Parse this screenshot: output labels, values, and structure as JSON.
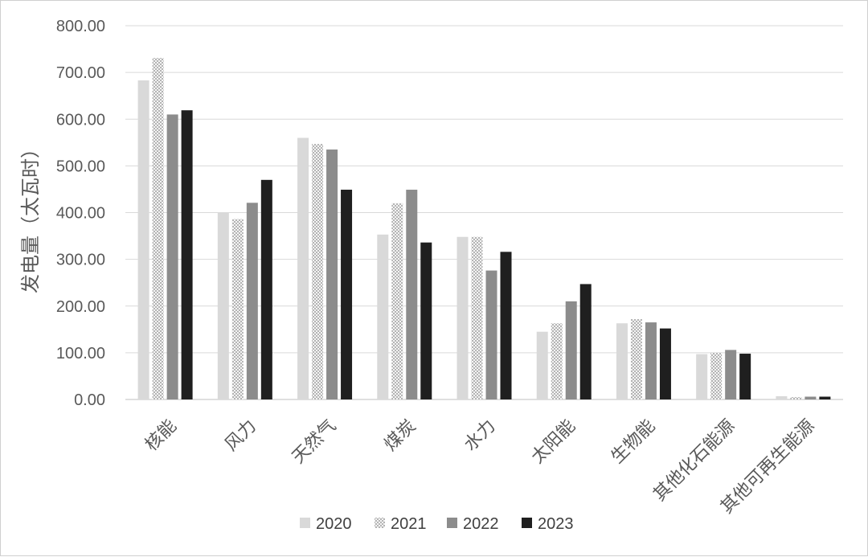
{
  "chart_data": {
    "type": "bar",
    "ylabel": "发电量（太瓦时）",
    "ylim": [
      0,
      800
    ],
    "yticks": [
      "0.00",
      "100.00",
      "200.00",
      "300.00",
      "400.00",
      "500.00",
      "600.00",
      "700.00",
      "800.00"
    ],
    "grid": true,
    "legend_position": "bottom",
    "categories": [
      "核能",
      "风力",
      "天然气",
      "煤炭",
      "水力",
      "太阳能",
      "生物能",
      "其他化石能源",
      "其他可再生能源"
    ],
    "series": [
      {
        "name": "2020",
        "color": "#d9d9d9",
        "pattern": "solid",
        "values": [
          683,
          400,
          560,
          353,
          348,
          145,
          163,
          97,
          7
        ]
      },
      {
        "name": "2021",
        "color": "#e6e6e6",
        "pattern": "checker",
        "values": [
          731,
          386,
          547,
          420,
          348,
          163,
          172,
          100,
          5
        ]
      },
      {
        "name": "2022",
        "color": "#8c8c8c",
        "pattern": "solid",
        "values": [
          610,
          421,
          535,
          449,
          276,
          210,
          165,
          106,
          6
        ]
      },
      {
        "name": "2023",
        "color": "#1f1f1f",
        "pattern": "solid",
        "values": [
          619,
          470,
          449,
          336,
          316,
          247,
          152,
          98,
          6
        ]
      }
    ]
  }
}
